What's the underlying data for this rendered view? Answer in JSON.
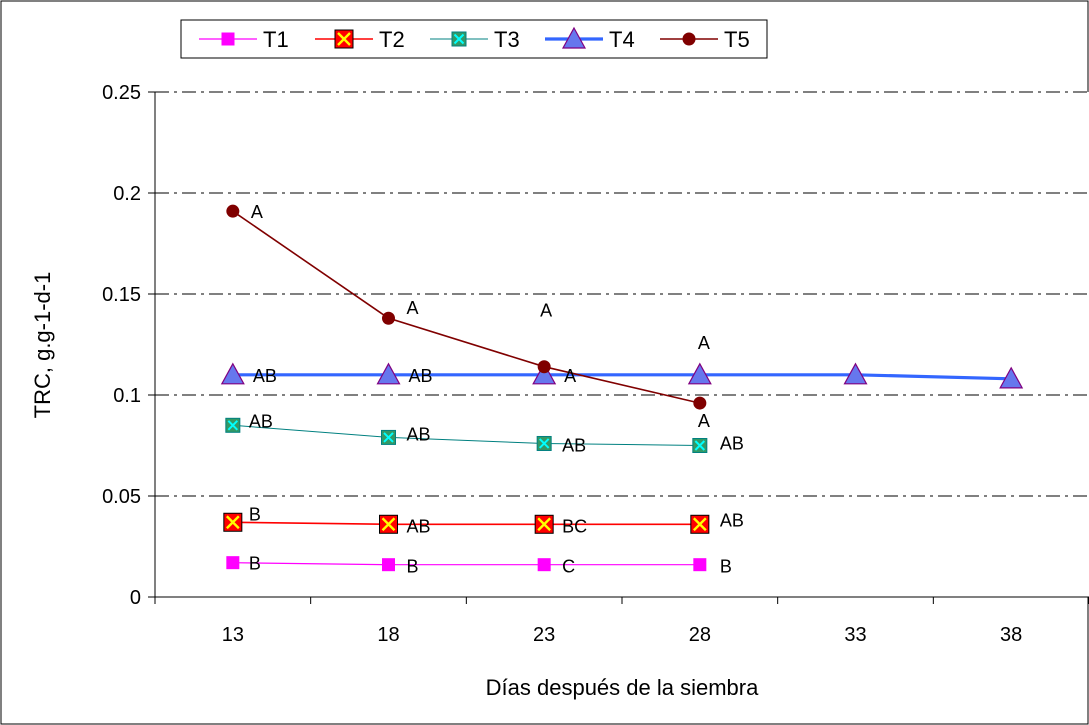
{
  "chart_data": {
    "type": "line",
    "title": "",
    "xlabel": "Días después de la siembra",
    "ylabel": "TRC, g.g-1-d-1",
    "x_ticks": [
      13,
      18,
      23,
      28,
      33,
      38
    ],
    "xlim": [
      10.5,
      40.5
    ],
    "y_ticks": [
      0,
      0.05,
      0.1,
      0.15,
      0.2,
      0.25
    ],
    "y_tick_labels": [
      "0",
      "0.05",
      "0.1",
      "0.15",
      "0.2",
      "0.25"
    ],
    "ylim": [
      0,
      0.25
    ],
    "grid": "horizontal dash-dot",
    "legend_position": "top",
    "series": [
      {
        "name": "T1",
        "color": "#ff00ff",
        "marker": "square",
        "x": [
          13,
          18,
          23,
          28
        ],
        "values": [
          0.017,
          0.016,
          0.016,
          0.016
        ],
        "labels": [
          "B",
          "B",
          "C",
          "B"
        ]
      },
      {
        "name": "T2",
        "color": "#ff0000",
        "marker": "square-x",
        "x": [
          13,
          18,
          23,
          28
        ],
        "values": [
          0.037,
          0.036,
          0.036,
          0.036
        ],
        "labels": [
          "B",
          "AB",
          "BC",
          "AB"
        ]
      },
      {
        "name": "T3",
        "color": "#008080",
        "marker": "square-x-teal",
        "x": [
          13,
          18,
          23,
          28
        ],
        "values": [
          0.085,
          0.079,
          0.076,
          0.075
        ],
        "labels": [
          "AB",
          "AB",
          "AB",
          "AB"
        ]
      },
      {
        "name": "T4",
        "color": "#3366ff",
        "marker": "triangle",
        "x": [
          13,
          18,
          23,
          28,
          33,
          38
        ],
        "values": [
          0.11,
          0.11,
          0.11,
          0.11,
          0.11,
          0.108
        ],
        "labels": [
          "AB",
          "AB",
          "A",
          "A",
          "",
          ""
        ]
      },
      {
        "name": "T5",
        "color": "#800000",
        "marker": "circle",
        "x": [
          13,
          18,
          23,
          28
        ],
        "values": [
          0.191,
          0.138,
          0.114,
          0.096
        ],
        "labels": [
          "A",
          "A",
          "A",
          "A"
        ]
      }
    ]
  }
}
